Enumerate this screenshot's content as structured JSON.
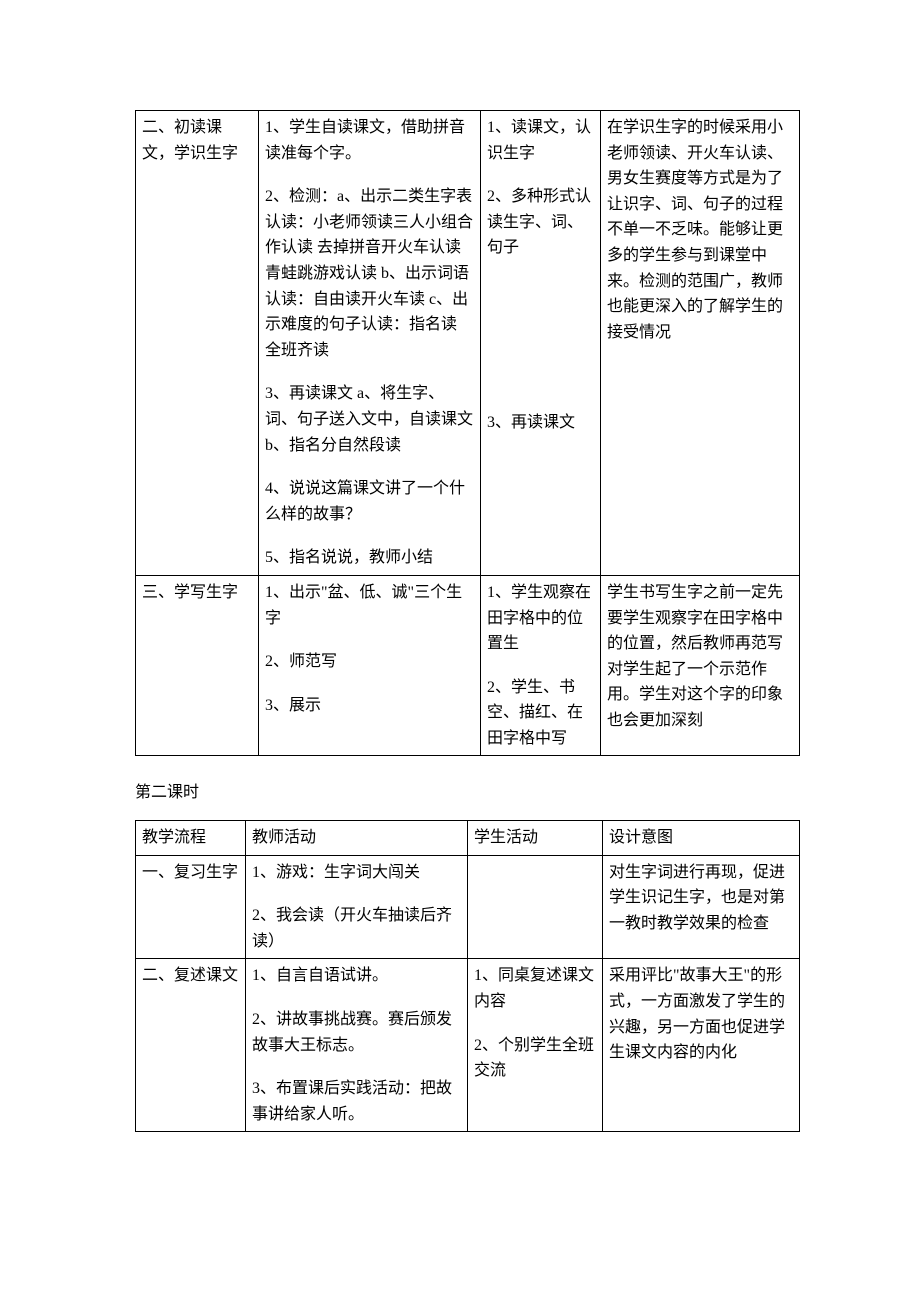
{
  "table1": {
    "columns": [
      "col1",
      "col2",
      "col3",
      "col4"
    ],
    "rows": [
      {
        "c1": "二、初读课文，学识生字",
        "c2_paras": [
          "1、学生自读课文，借助拼音读准每个字。",
          "2、检测：a、出示二类生字表认读：小老师领读三人小组合作认读 去掉拼音开火车认读 青蛙跳游戏认读 b、出示词语认读：自由读开火车读 c、出示难度的句子认读：指名读 全班齐读",
          "3、再读课文 a、将生字、词、句子送入文中，自读课文 b、指名分自然段读",
          "4、说说这篇课文讲了一个什么样的故事？",
          "5、指名说说，教师小结"
        ],
        "c3_paras": [
          "1、读课文，认识生字",
          "2、多种形式认读生字、词、句子",
          "",
          "",
          "",
          "3、再读课文"
        ],
        "c4": "在学识生字的时候采用小老师领读、开火车认读、男女生赛度等方式是为了让识字、词、句子的过程不单一不乏味。能够让更多的学生参与到课堂中来。检测的范围广，教师也能更深入的了解学生的接受情况"
      },
      {
        "c1": "三、学写生字",
        "c2_paras": [
          "1、出示\"盆、低、诚\"三个生字",
          "2、师范写",
          "3、展示"
        ],
        "c3_paras": [
          "1、学生观察在田字格中的位置生",
          "2、学生、书空、描红、在田字格中写"
        ],
        "c4": "学生书写生字之前一定先要学生观察字在田字格中的位置，然后教师再范写对学生起了一个示范作用。学生对这个字的印象也会更加深刻"
      }
    ]
  },
  "subheading": "第二课时",
  "table2": {
    "header": {
      "c1": "教学流程",
      "c2": "教师活动",
      "c3": "学生活动",
      "c4": "设计意图"
    },
    "rows": [
      {
        "c1": "一、复习生字",
        "c2_paras": [
          "1、游戏：生字词大闯关",
          "2、我会读（开火车抽读后齐读）"
        ],
        "c3_paras": [],
        "c4": "对生字词进行再现，促进学生识记生字，也是对第一教时教学效果的检查"
      },
      {
        "c1": "二、复述课文",
        "c2_paras": [
          "1、自言自语试讲。",
          "2、讲故事挑战赛。赛后颁发故事大王标志。",
          "3、布置课后实践活动：把故事讲给家人听。"
        ],
        "c3_paras": [
          "1、同桌复述课文内容",
          "2、个别学生全班交流"
        ],
        "c4": "采用评比\"故事大王\"的形式，一方面激发了学生的兴趣，另一方面也促进学生课文内容的内化"
      }
    ]
  },
  "style": {
    "font_family": "SimSun",
    "font_size_pt": 12,
    "border_color": "#000000",
    "background": "#ffffff",
    "text_color": "#000000"
  }
}
